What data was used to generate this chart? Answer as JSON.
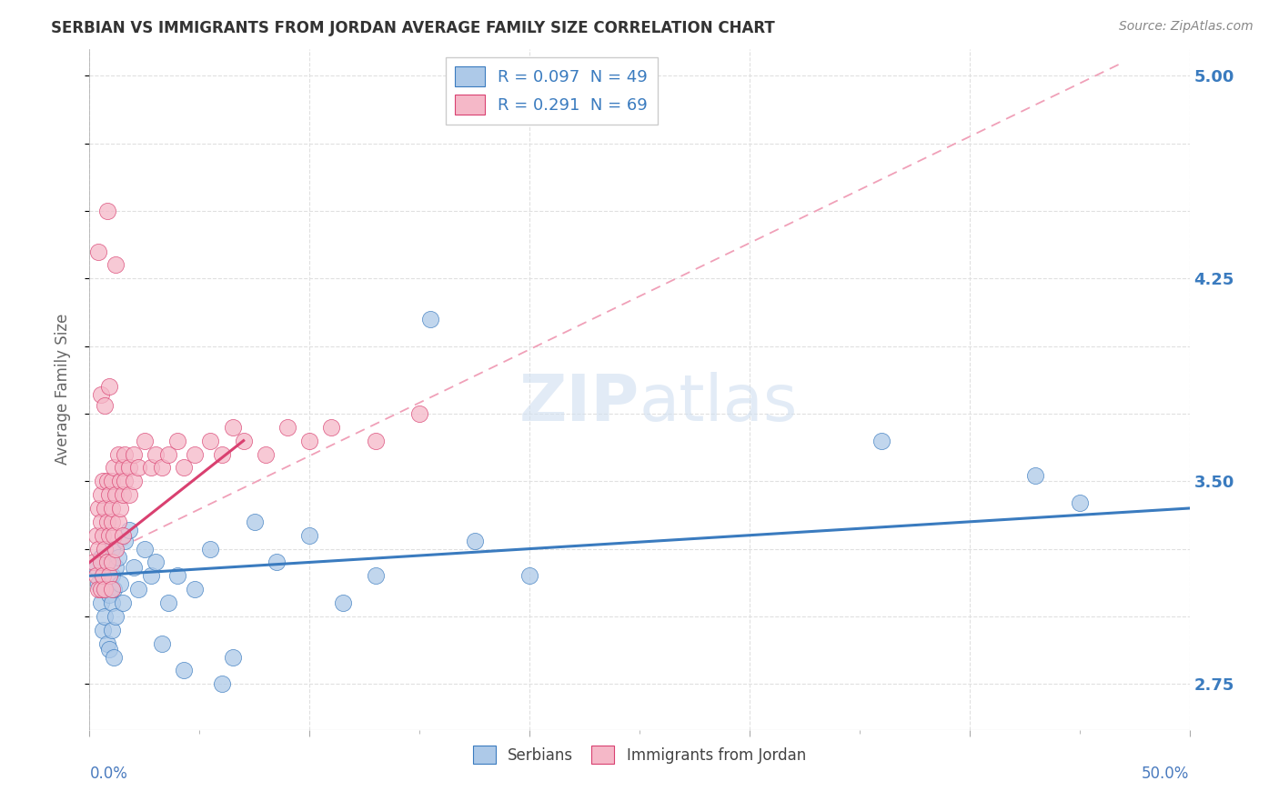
{
  "title": "SERBIAN VS IMMIGRANTS FROM JORDAN AVERAGE FAMILY SIZE CORRELATION CHART",
  "source": "Source: ZipAtlas.com",
  "ylabel": "Average Family Size",
  "right_yticks": [
    2.75,
    3.5,
    4.25,
    5.0
  ],
  "legend_label1": "R = 0.097  N = 49",
  "legend_label2": "R = 0.291  N = 69",
  "legend_name1": "Serbians",
  "legend_name2": "Immigrants from Jordan",
  "color_serbian": "#adc9e8",
  "color_jordan": "#f5b8c8",
  "line_color_serbian": "#3a7bbf",
  "line_color_jordan": "#d94070",
  "dashed_line_color": "#f0a0b8",
  "xlim": [
    0.0,
    0.5
  ],
  "ylim": [
    2.58,
    5.1
  ],
  "serbian_x": [
    0.003,
    0.004,
    0.005,
    0.005,
    0.006,
    0.006,
    0.007,
    0.007,
    0.008,
    0.008,
    0.009,
    0.009,
    0.01,
    0.01,
    0.01,
    0.01,
    0.011,
    0.011,
    0.012,
    0.012,
    0.013,
    0.014,
    0.015,
    0.016,
    0.018,
    0.02,
    0.022,
    0.025,
    0.028,
    0.03,
    0.033,
    0.036,
    0.04,
    0.043,
    0.048,
    0.055,
    0.06,
    0.065,
    0.075,
    0.085,
    0.1,
    0.115,
    0.13,
    0.155,
    0.175,
    0.2,
    0.36,
    0.43,
    0.45
  ],
  "serbian_y": [
    3.18,
    3.12,
    3.22,
    3.05,
    3.15,
    2.95,
    3.1,
    3.0,
    3.2,
    2.9,
    3.08,
    2.88,
    3.25,
    3.15,
    3.05,
    2.95,
    3.1,
    2.85,
    3.18,
    3.0,
    3.22,
    3.12,
    3.05,
    3.28,
    3.32,
    3.18,
    3.1,
    3.25,
    3.15,
    3.2,
    2.9,
    3.05,
    3.15,
    2.8,
    3.1,
    3.25,
    2.75,
    2.85,
    3.35,
    3.2,
    3.3,
    3.05,
    3.15,
    4.1,
    3.28,
    3.15,
    3.65,
    3.52,
    3.42
  ],
  "jordan_x": [
    0.002,
    0.003,
    0.003,
    0.004,
    0.004,
    0.004,
    0.005,
    0.005,
    0.005,
    0.005,
    0.006,
    0.006,
    0.006,
    0.007,
    0.007,
    0.007,
    0.008,
    0.008,
    0.008,
    0.009,
    0.009,
    0.009,
    0.01,
    0.01,
    0.01,
    0.01,
    0.01,
    0.011,
    0.011,
    0.012,
    0.012,
    0.013,
    0.013,
    0.014,
    0.014,
    0.015,
    0.015,
    0.015,
    0.016,
    0.016,
    0.018,
    0.018,
    0.02,
    0.02,
    0.022,
    0.025,
    0.028,
    0.03,
    0.033,
    0.036,
    0.04,
    0.043,
    0.048,
    0.055,
    0.06,
    0.065,
    0.07,
    0.08,
    0.09,
    0.1,
    0.11,
    0.13,
    0.15,
    0.004,
    0.008,
    0.012,
    0.005,
    0.007,
    0.009
  ],
  "jordan_y": [
    3.2,
    3.3,
    3.15,
    3.25,
    3.1,
    3.4,
    3.2,
    3.35,
    3.1,
    3.45,
    3.3,
    3.15,
    3.5,
    3.25,
    3.4,
    3.1,
    3.35,
    3.2,
    3.5,
    3.3,
    3.15,
    3.45,
    3.35,
    3.2,
    3.5,
    3.1,
    3.4,
    3.3,
    3.55,
    3.25,
    3.45,
    3.35,
    3.6,
    3.4,
    3.5,
    3.3,
    3.55,
    3.45,
    3.6,
    3.5,
    3.55,
    3.45,
    3.6,
    3.5,
    3.55,
    3.65,
    3.55,
    3.6,
    3.55,
    3.6,
    3.65,
    3.55,
    3.6,
    3.65,
    3.6,
    3.7,
    3.65,
    3.6,
    3.7,
    3.65,
    3.7,
    3.65,
    3.75,
    4.35,
    4.5,
    4.3,
    3.82,
    3.78,
    3.85
  ]
}
